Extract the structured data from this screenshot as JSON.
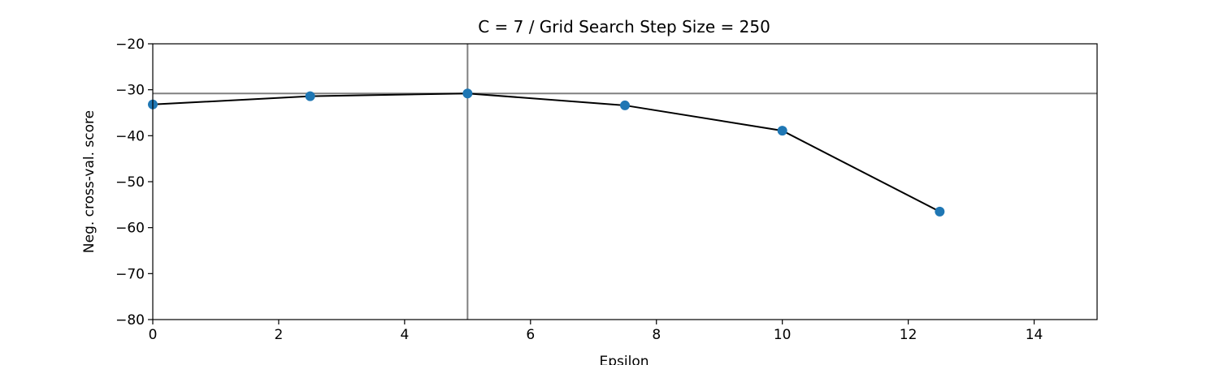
{
  "chart_data": {
    "type": "line",
    "title": "C = 7 / Grid Search Step Size = 250",
    "xlabel": "Epsilon",
    "ylabel": "Neg. cross-val. score",
    "xlim": [
      0,
      15
    ],
    "ylim": [
      -80,
      -20
    ],
    "xticks": [
      0,
      2,
      4,
      6,
      8,
      10,
      12,
      14
    ],
    "yticks": [
      -20,
      -30,
      -40,
      -50,
      -60,
      -70,
      -80
    ],
    "xtick_labels": [
      "0",
      "2",
      "4",
      "6",
      "8",
      "10",
      "12",
      "14"
    ],
    "ytick_labels": [
      "−20",
      "−30",
      "−40",
      "−50",
      "−60",
      "−70",
      "−80"
    ],
    "grid": false,
    "x": [
      0,
      2.5,
      5,
      7.5,
      10,
      12.5
    ],
    "y": [
      -33.2,
      -31.4,
      -30.8,
      -33.4,
      -38.9,
      -56.5
    ],
    "best": {
      "x": 5,
      "y": -30.8
    },
    "colors": {
      "line": "#000000",
      "markers": "#1f77b4",
      "reference_lines": "#808080"
    }
  }
}
